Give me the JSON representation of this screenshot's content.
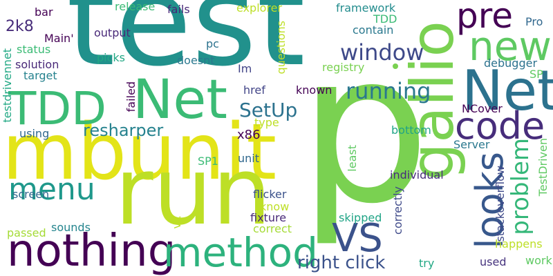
{
  "words": [
    {
      "text": "test",
      "color": "#21918c"
    },
    {
      "text": "p",
      "color": "#7ad151"
    },
    {
      "text": "mbunit",
      "color": "#e3e418"
    },
    {
      "text": "run",
      "color": "#bddf26"
    },
    {
      "text": "gallio",
      "color": "#7ad151"
    },
    {
      "text": "Net",
      "color": "#2c728e"
    },
    {
      "text": "Net",
      "color": "#3bbb75"
    },
    {
      "text": "TDD",
      "color": "#3bbb75"
    },
    {
      "text": "nothing",
      "color": "#440154"
    },
    {
      "text": "method",
      "color": "#2db27d"
    },
    {
      "text": "code",
      "color": "#472d7b"
    },
    {
      "text": "new",
      "color": "#5ec962"
    },
    {
      "text": "pre",
      "color": "#440154"
    },
    {
      "text": "looks",
      "color": "#38588c"
    },
    {
      "text": "VS",
      "color": "#3b528b"
    },
    {
      "text": "menu",
      "color": "#1f988b"
    },
    {
      "text": "window",
      "color": "#3e4989"
    },
    {
      "text": "running",
      "color": "#2a788e"
    },
    {
      "text": "SetUp",
      "color": "#2c728e"
    },
    {
      "text": "problem",
      "color": "#35b779"
    },
    {
      "text": "resharper",
      "color": "#26828e"
    },
    {
      "text": "right click",
      "color": "#3b528b"
    },
    {
      "text": "2k8",
      "color": "#472c7a"
    },
    {
      "text": "x86",
      "color": "#440154"
    },
    {
      "text": "type",
      "color": "#bddf26"
    },
    {
      "text": "href",
      "color": "#414487"
    },
    {
      "text": "known",
      "color": "#440154"
    },
    {
      "text": "failed",
      "color": "#440154"
    },
    {
      "text": "Im",
      "color": "#414487"
    },
    {
      "text": "doesnt",
      "color": "#2a788e"
    },
    {
      "text": "picks",
      "color": "#22a884"
    },
    {
      "text": "output",
      "color": "#482878"
    },
    {
      "text": "pc",
      "color": "#2c728e"
    },
    {
      "text": "Main'",
      "color": "#440154"
    },
    {
      "text": "status",
      "color": "#3bbb75"
    },
    {
      "text": "solution",
      "color": "#482878"
    },
    {
      "text": "target",
      "color": "#26828e"
    },
    {
      "text": "bar",
      "color": "#440154"
    },
    {
      "text": "release",
      "color": "#3bbb75"
    },
    {
      "text": "fails",
      "color": "#482878"
    },
    {
      "text": "explorer",
      "color": "#bddf26"
    },
    {
      "text": "questions",
      "color": "#bddf26"
    },
    {
      "text": "framework",
      "color": "#228c8d"
    },
    {
      "text": "TDD",
      "color": "#3bbb75"
    },
    {
      "text": "contain",
      "color": "#2a788e"
    },
    {
      "text": "Pro",
      "color": "#31688e"
    },
    {
      "text": "registry",
      "color": "#7ad151"
    },
    {
      "text": "debugger",
      "color": "#2c728e"
    },
    {
      "text": "SP",
      "color": "#5ec962"
    },
    {
      "text": "testdrivennet",
      "color": "#22a884"
    },
    {
      "text": "using",
      "color": "#31688e"
    },
    {
      "text": "bottom",
      "color": "#20a486"
    },
    {
      "text": "NCover",
      "color": "#440154"
    },
    {
      "text": "Server",
      "color": "#2a788e"
    },
    {
      "text": "stackoverflow",
      "color": "#3e4989"
    },
    {
      "text": "TestDriven",
      "color": "#5ec962"
    },
    {
      "text": "SP1",
      "color": "#3bbb75"
    },
    {
      "text": "unit",
      "color": "#31688e"
    },
    {
      "text": "least",
      "color": "#5ec962"
    },
    {
      "text": "individual",
      "color": "#472d7b"
    },
    {
      "text": "screen",
      "color": "#31688e"
    },
    {
      "text": "flicker",
      "color": "#3b528b"
    },
    {
      "text": "know",
      "color": "#bddf26"
    },
    {
      "text": "skipped",
      "color": "#20a486"
    },
    {
      "text": "passed",
      "color": "#a5db36"
    },
    {
      "text": "sounds",
      "color": "#25858e"
    },
    {
      "text": "v2",
      "color": "#bddf26"
    },
    {
      "text": "fixture",
      "color": "#482878"
    },
    {
      "text": "correct",
      "color": "#a5db36"
    },
    {
      "text": "correctly",
      "color": "#3e4989"
    },
    {
      "text": "happens",
      "color": "#bddf26"
    },
    {
      "text": "work",
      "color": "#5ec962"
    },
    {
      "text": "try",
      "color": "#22a884"
    },
    {
      "text": "used",
      "color": "#46337e"
    }
  ]
}
